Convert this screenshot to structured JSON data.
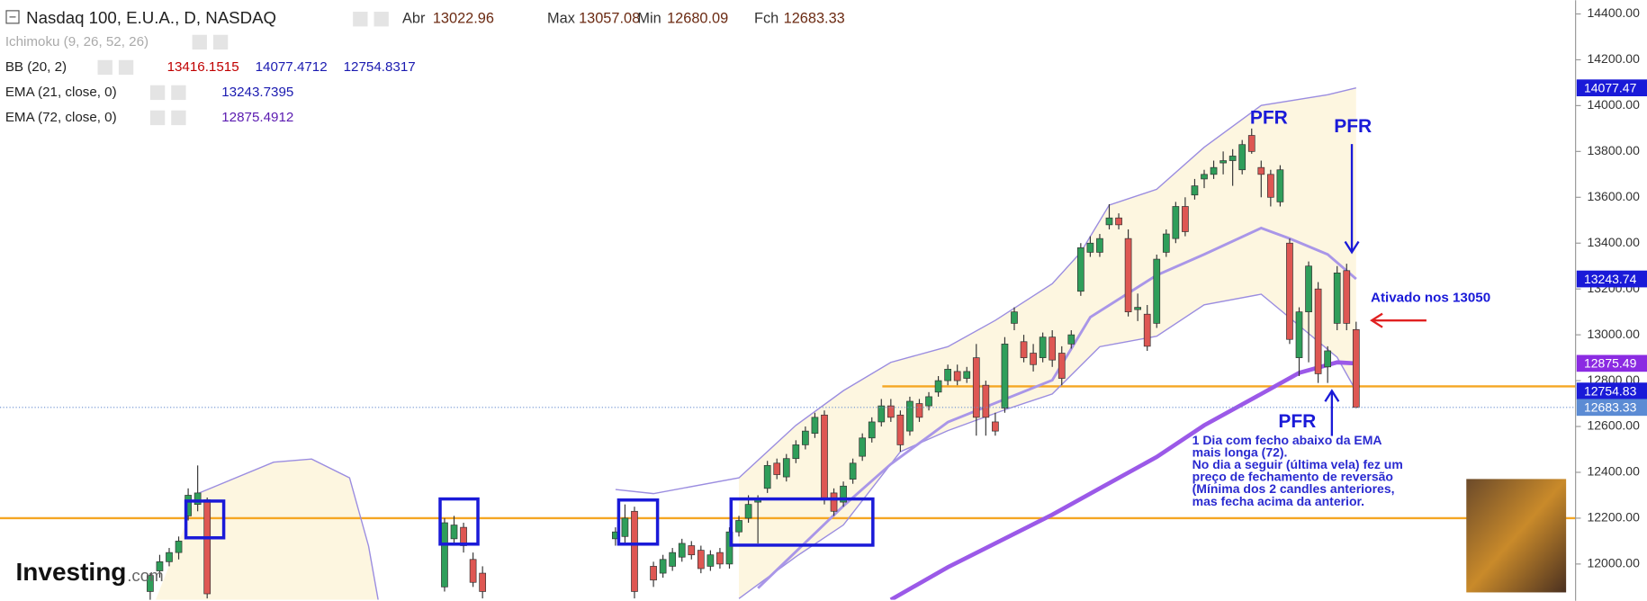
{
  "header": {
    "symbol": "Nasdaq 100, E.U.A., D, NASDAQ",
    "ohlc": [
      {
        "label": "Abr",
        "value": 13022.96
      },
      {
        "label": "Max",
        "value": 13057.08
      },
      {
        "label": "Min",
        "value": 12680.09
      },
      {
        "label": "Fch",
        "value": 12683.33
      }
    ]
  },
  "indicators_legend": [
    {
      "name": "Ichimoku (9, 26, 52, 26)"
    },
    {
      "name": "BB (20, 2)",
      "values": [
        13416.1515,
        14077.4712,
        12754.8317
      ],
      "colors": [
        "#c00000",
        "#1a1ab0",
        "#1a1ab0"
      ]
    },
    {
      "name": "EMA (21, close, 0)",
      "values": [
        13243.7395
      ],
      "colors": [
        "#1a1ab0"
      ]
    },
    {
      "name": "EMA (72, close, 0)",
      "values": [
        12875.4912
      ],
      "colors": [
        "#5a1ab0"
      ]
    }
  ],
  "chart_data": {
    "type": "candlestick",
    "ylim": [
      11844,
      14460
    ],
    "yticks": [
      {
        "value": 12000,
        "label": "12000.00"
      },
      {
        "value": 12200,
        "label": "12200.00"
      },
      {
        "value": 12400,
        "label": "12400.00"
      },
      {
        "value": 12600,
        "label": "12600.00"
      },
      {
        "value": 12800,
        "label": "12800.00"
      },
      {
        "value": 13000,
        "label": "13000.00"
      },
      {
        "value": 13200,
        "label": "13200.00"
      },
      {
        "value": 13400,
        "label": "13400.00"
      },
      {
        "value": 13600,
        "label": "13600.00"
      },
      {
        "value": 13800,
        "label": "13800.00"
      },
      {
        "value": 14000,
        "label": "14000.00"
      },
      {
        "value": 14200,
        "label": "14200.00"
      },
      {
        "value": 14400,
        "label": "14400.00"
      }
    ],
    "up_color": "#2f9e5a",
    "down_color": "#de5753",
    "candles": [
      {
        "open": 11880,
        "high": 11960,
        "low": 11840,
        "close": 11950
      },
      {
        "open": 11970,
        "high": 12040,
        "low": 11940,
        "close": 12010
      },
      {
        "open": 12010,
        "high": 12070,
        "low": 11990,
        "close": 12050
      },
      {
        "open": 12050,
        "high": 12120,
        "low": 12020,
        "close": 12100
      },
      {
        "open": 12210,
        "high": 12330,
        "low": 12190,
        "close": 12300
      },
      {
        "open": 12260,
        "high": 12430,
        "low": 12230,
        "close": 12310
      },
      {
        "open": 12280,
        "high": 12290,
        "low": 11850,
        "close": 11870
      },
      null,
      null,
      null,
      null,
      null,
      null,
      null,
      null,
      null,
      null,
      null,
      null,
      null,
      null,
      null,
      null,
      null,
      null,
      null,
      null,
      null,
      null,
      null,
      null,
      {
        "open": 11900,
        "high": 12200,
        "low": 11880,
        "close": 12180
      },
      {
        "open": 12110,
        "high": 12210,
        "low": 12080,
        "close": 12170
      },
      {
        "open": 12160,
        "high": 12180,
        "low": 12050,
        "close": 12080
      },
      {
        "open": 12020,
        "high": 12050,
        "low": 11900,
        "close": 11920
      },
      {
        "open": 11960,
        "high": 11990,
        "low": 11850,
        "close": 11880
      },
      null,
      null,
      null,
      null,
      null,
      null,
      null,
      null,
      null,
      null,
      null,
      null,
      null,
      {
        "open": 12110,
        "high": 12160,
        "low": 12080,
        "close": 12140
      },
      {
        "open": 12120,
        "high": 12260,
        "low": 12090,
        "close": 12200
      },
      {
        "open": 12230,
        "high": 12250,
        "low": 11850,
        "close": 11880
      },
      null,
      {
        "open": 11990,
        "high": 12010,
        "low": 11900,
        "close": 11930
      },
      {
        "open": 11960,
        "high": 12040,
        "low": 11940,
        "close": 12020
      },
      {
        "open": 11990,
        "high": 12070,
        "low": 11970,
        "close": 12050
      },
      {
        "open": 12030,
        "high": 12110,
        "low": 12010,
        "close": 12090
      },
      {
        "open": 12080,
        "high": 12100,
        "low": 12020,
        "close": 12040
      },
      {
        "open": 12060,
        "high": 12080,
        "low": 11960,
        "close": 11980
      },
      {
        "open": 11990,
        "high": 12060,
        "low": 11970,
        "close": 12040
      },
      {
        "open": 12050,
        "high": 12070,
        "low": 11980,
        "close": 12000
      },
      {
        "open": 12000,
        "high": 12160,
        "low": 11980,
        "close": 12140
      },
      {
        "open": 12140,
        "high": 12210,
        "low": 12120,
        "close": 12190
      },
      {
        "open": 12200,
        "high": 12300,
        "low": 12180,
        "close": 12260
      },
      {
        "open": 12270,
        "high": 12300,
        "low": 12090,
        "close": 12280
      },
      {
        "open": 12330,
        "high": 12450,
        "low": 12310,
        "close": 12430
      },
      {
        "open": 12440,
        "high": 12460,
        "low": 12370,
        "close": 12390
      },
      {
        "open": 12380,
        "high": 12480,
        "low": 12360,
        "close": 12460
      },
      {
        "open": 12460,
        "high": 12540,
        "low": 12440,
        "close": 12520
      },
      {
        "open": 12520,
        "high": 12600,
        "low": 12500,
        "close": 12580
      },
      {
        "open": 12570,
        "high": 12660,
        "low": 12550,
        "close": 12640
      },
      {
        "open": 12650,
        "high": 12670,
        "low": 12260,
        "close": 12280
      },
      {
        "open": 12310,
        "high": 12330,
        "low": 12210,
        "close": 12230
      },
      {
        "open": 12270,
        "high": 12360,
        "low": 12250,
        "close": 12340
      },
      {
        "open": 12370,
        "high": 12460,
        "low": 12350,
        "close": 12440
      },
      {
        "open": 12470,
        "high": 12570,
        "low": 12450,
        "close": 12550
      },
      {
        "open": 12550,
        "high": 12640,
        "low": 12530,
        "close": 12620
      },
      {
        "open": 12620,
        "high": 12720,
        "low": 12600,
        "close": 12690
      },
      {
        "open": 12690,
        "high": 12720,
        "low": 12620,
        "close": 12640
      },
      {
        "open": 12650,
        "high": 12670,
        "low": 12490,
        "close": 12520
      },
      {
        "open": 12580,
        "high": 12730,
        "low": 12560,
        "close": 12710
      },
      {
        "open": 12700,
        "high": 12720,
        "low": 12620,
        "close": 12640
      },
      {
        "open": 12690,
        "high": 12750,
        "low": 12670,
        "close": 12730
      },
      {
        "open": 12750,
        "high": 12820,
        "low": 12730,
        "close": 12800
      },
      {
        "open": 12800,
        "high": 12870,
        "low": 12780,
        "close": 12850
      },
      {
        "open": 12840,
        "high": 12870,
        "low": 12780,
        "close": 12800
      },
      {
        "open": 12810,
        "high": 12860,
        "low": 12790,
        "close": 12840
      },
      {
        "open": 12900,
        "high": 12960,
        "low": 12560,
        "close": 12640
      },
      {
        "open": 12780,
        "high": 12800,
        "low": 12560,
        "close": 12640
      },
      {
        "open": 12620,
        "high": 12660,
        "low": 12560,
        "close": 12580
      },
      {
        "open": 12680,
        "high": 12990,
        "low": 12660,
        "close": 12960
      },
      {
        "open": 13050,
        "high": 13120,
        "low": 13020,
        "close": 13100
      },
      {
        "open": 12970,
        "high": 13000,
        "low": 12880,
        "close": 12900
      },
      {
        "open": 12920,
        "high": 12960,
        "low": 12840,
        "close": 12870
      },
      {
        "open": 12900,
        "high": 13010,
        "low": 12880,
        "close": 12990
      },
      {
        "open": 12990,
        "high": 13020,
        "low": 12860,
        "close": 12890
      },
      {
        "open": 12920,
        "high": 12950,
        "low": 12780,
        "close": 12810
      },
      {
        "open": 12960,
        "high": 13020,
        "low": 12940,
        "close": 13000
      },
      {
        "open": 13190,
        "high": 13400,
        "low": 13170,
        "close": 13380
      },
      {
        "open": 13360,
        "high": 13430,
        "low": 13340,
        "close": 13400
      },
      {
        "open": 13360,
        "high": 13440,
        "low": 13340,
        "close": 13420
      },
      {
        "open": 13480,
        "high": 13570,
        "low": 13460,
        "close": 13510
      },
      {
        "open": 13510,
        "high": 13530,
        "low": 13460,
        "close": 13480
      },
      {
        "open": 13420,
        "high": 13460,
        "low": 13080,
        "close": 13100
      },
      {
        "open": 13110,
        "high": 13180,
        "low": 13060,
        "close": 13120
      },
      {
        "open": 13090,
        "high": 13130,
        "low": 12930,
        "close": 12950
      },
      {
        "open": 13050,
        "high": 13350,
        "low": 13030,
        "close": 13330
      },
      {
        "open": 13360,
        "high": 13460,
        "low": 13340,
        "close": 13440
      },
      {
        "open": 13420,
        "high": 13580,
        "low": 13400,
        "close": 13560
      },
      {
        "open": 13560,
        "high": 13600,
        "low": 13430,
        "close": 13450
      },
      {
        "open": 13610,
        "high": 13680,
        "low": 13590,
        "close": 13650
      },
      {
        "open": 13680,
        "high": 13720,
        "low": 13640,
        "close": 13700
      },
      {
        "open": 13700,
        "high": 13760,
        "low": 13680,
        "close": 13730
      },
      {
        "open": 13750,
        "high": 13800,
        "low": 13700,
        "close": 13760
      },
      {
        "open": 13760,
        "high": 13810,
        "low": 13650,
        "close": 13780
      },
      {
        "open": 13720,
        "high": 13850,
        "low": 13700,
        "close": 13830
      },
      {
        "open": 13870,
        "high": 13900,
        "low": 13790,
        "close": 13800
      },
      {
        "open": 13730,
        "high": 13760,
        "low": 13600,
        "close": 13700
      },
      {
        "open": 13700,
        "high": 13720,
        "low": 13560,
        "close": 13600
      },
      {
        "open": 13580,
        "high": 13740,
        "low": 13560,
        "close": 13720
      },
      {
        "open": 13400,
        "high": 13420,
        "low": 12960,
        "close": 12980
      },
      {
        "open": 12900,
        "high": 13120,
        "low": 12820,
        "close": 13100
      },
      {
        "open": 13100,
        "high": 13320,
        "low": 12880,
        "close": 13300
      },
      {
        "open": 13200,
        "high": 13230,
        "low": 12790,
        "close": 12830
      },
      {
        "open": 12860,
        "high": 12950,
        "low": 12790,
        "close": 12930
      },
      {
        "open": 13050,
        "high": 13300,
        "low": 13020,
        "close": 13270
      },
      {
        "open": 13280,
        "high": 13310,
        "low": 13020,
        "close": 13050
      },
      {
        "open": 13022.96,
        "high": 13057.08,
        "low": 12680.09,
        "close": 12683.33
      }
    ],
    "band": {
      "color": "#fdf6e0",
      "upper": {
        "color": "#9b8de0",
        "x": [
          5,
          13,
          17,
          21,
          23,
          24,
          null,
          49,
          53,
          62,
          68,
          73,
          78,
          84,
          89,
          95,
          98,
          101,
          106,
          111,
          117,
          124,
          127
        ],
        "values": [
          12307,
          12444,
          12458,
          12376,
          12078,
          11844,
          null,
          12325,
          12307,
          12376,
          12605,
          12756,
          12880,
          12948,
          13063,
          13223,
          13360,
          13566,
          13635,
          13818,
          14001,
          14047,
          14077.4712
        ]
      },
      "lower": {
        "color": "#9b8de0",
        "x": [
          62,
          68,
          73,
          79,
          84,
          90,
          95,
          100,
          106,
          111,
          117,
          121,
          125,
          127
        ],
        "values": [
          11849,
          12032,
          12170,
          12490,
          12582,
          12673,
          12742,
          12948,
          12994,
          13131,
          13177,
          13040,
          12902,
          12754.8317
        ]
      }
    },
    "series": [
      {
        "color": "#a996e8",
        "width": 2.5,
        "x": [
          64,
          73,
          78,
          84,
          95,
          99,
          106,
          111,
          117,
          120,
          124,
          127
        ],
        "values": [
          11895,
          12253,
          12436,
          12619,
          12802,
          13077,
          13260,
          13351,
          13466,
          13420,
          13351,
          13243.7395
        ]
      },
      {
        "color": "#9b59e8",
        "width": 4,
        "x": [
          78,
          84,
          95,
          100,
          106,
          111,
          117,
          121,
          125,
          127
        ],
        "values": [
          11844,
          11986,
          12215,
          12330,
          12467,
          12605,
          12742,
          12834,
          12880,
          12875.4912
        ]
      }
    ],
    "hlines": [
      {
        "value": 12775,
        "color": "#f5a623"
      },
      {
        "value": 12200,
        "color": "#f5a623"
      }
    ],
    "last_price_line": 12683.33,
    "price_labels": [
      {
        "value": 14077.47,
        "color": "#1a1ad8"
      },
      {
        "value": 13243.74,
        "color": "#1a1ad8"
      },
      {
        "value": 12875.49,
        "color": "#8b2be2"
      },
      {
        "value": 12754.83,
        "color": "#1a1ad8"
      },
      {
        "value": 12683.33,
        "color": "#5b8bd4"
      }
    ],
    "annotations": [
      "PFR",
      "PFR",
      "PFR",
      "Ativado nos 13050"
    ],
    "note_lines": [
      "1 Dia com fecho abaixo da EMA",
      "mais longa (72).",
      "No dia a seguir (última vela) fez um",
      "preço de fechamento de reversão",
      "(Mínima dos 2 candles anteriores,",
      "mas fecha acima da anterior."
    ]
  },
  "logo": [
    "Investing",
    ".com"
  ]
}
